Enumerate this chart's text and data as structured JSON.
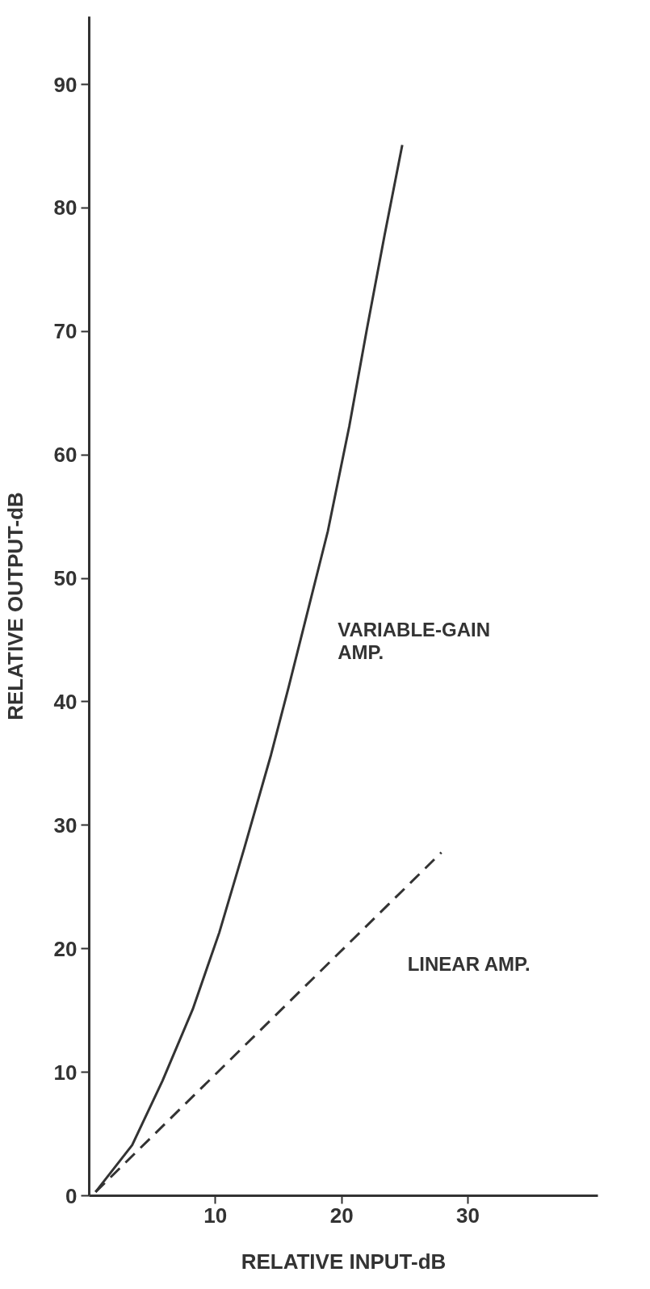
{
  "chart_data": {
    "type": "line",
    "xlabel": "RELATIVE INPUT-dB",
    "ylabel": "RELATIVE OUTPUT-dB",
    "xlim": [
      0,
      40.3
    ],
    "ylim": [
      0,
      95.5
    ],
    "xticks": [
      10,
      20,
      30
    ],
    "yticks": [
      0,
      10,
      20,
      30,
      40,
      50,
      60,
      70,
      80,
      90
    ],
    "grid": false,
    "series": [
      {
        "name": "VARIABLE-GAIN\nAMP.",
        "color": "#333333",
        "line_style": "solid",
        "x": [
          0.5,
          3.4,
          5.8,
          8.2,
          10.3,
          12.3,
          14.4,
          15.8,
          18.9,
          20.6,
          22.0,
          23.4,
          24.8
        ],
        "values": [
          0.3,
          4.1,
          9.3,
          15.1,
          21.3,
          28.2,
          35.7,
          41.2,
          53.8,
          62.3,
          70.2,
          77.8,
          85.1
        ]
      },
      {
        "name": "LINEAR AMP.",
        "color": "#333333",
        "line_style": "dashed",
        "x": [
          0.5,
          27.9
        ],
        "values": [
          0.3,
          27.8
        ]
      }
    ]
  }
}
